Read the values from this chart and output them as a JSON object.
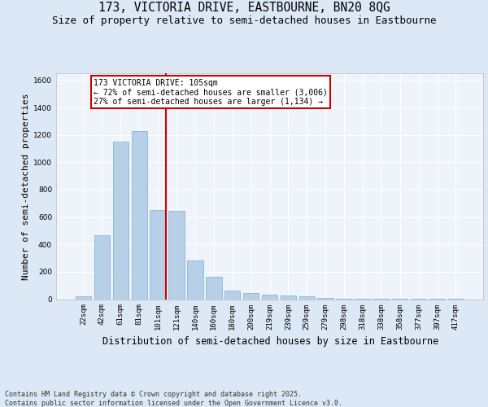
{
  "title": "173, VICTORIA DRIVE, EASTBOURNE, BN20 8QG",
  "subtitle": "Size of property relative to semi-detached houses in Eastbourne",
  "xlabel": "Distribution of semi-detached houses by size in Eastbourne",
  "ylabel": "Number of semi-detached properties",
  "categories": [
    "22sqm",
    "42sqm",
    "61sqm",
    "81sqm",
    "101sqm",
    "121sqm",
    "140sqm",
    "160sqm",
    "180sqm",
    "200sqm",
    "219sqm",
    "239sqm",
    "259sqm",
    "279sqm",
    "298sqm",
    "318sqm",
    "338sqm",
    "358sqm",
    "377sqm",
    "397sqm",
    "417sqm"
  ],
  "values": [
    20,
    465,
    1150,
    1230,
    650,
    645,
    285,
    165,
    60,
    45,
    35,
    25,
    20,
    10,
    5,
    2,
    1,
    1,
    1,
    1,
    1
  ],
  "bar_color": "#b8cfe8",
  "bar_edge_color": "#7aaed6",
  "vline_index": 4,
  "vline_color": "#cc0000",
  "ylim": [
    0,
    1650
  ],
  "yticks": [
    0,
    200,
    400,
    600,
    800,
    1000,
    1200,
    1400,
    1600
  ],
  "annotation_title": "173 VICTORIA DRIVE: 105sqm",
  "annotation_line1": "← 72% of semi-detached houses are smaller (3,006)",
  "annotation_line2": "27% of semi-detached houses are larger (1,134) →",
  "annotation_box_edgecolor": "#cc0000",
  "footer_line1": "Contains HM Land Registry data © Crown copyright and database right 2025.",
  "footer_line2": "Contains public sector information licensed under the Open Government Licence v3.0.",
  "bg_color": "#dce8f5",
  "plot_bg_color": "#eef4fa",
  "grid_color": "#ffffff",
  "title_fontsize": 10.5,
  "subtitle_fontsize": 9,
  "tick_fontsize": 6.5,
  "ylabel_fontsize": 8,
  "xlabel_fontsize": 8.5,
  "footer_fontsize": 6,
  "ann_fontsize": 7
}
